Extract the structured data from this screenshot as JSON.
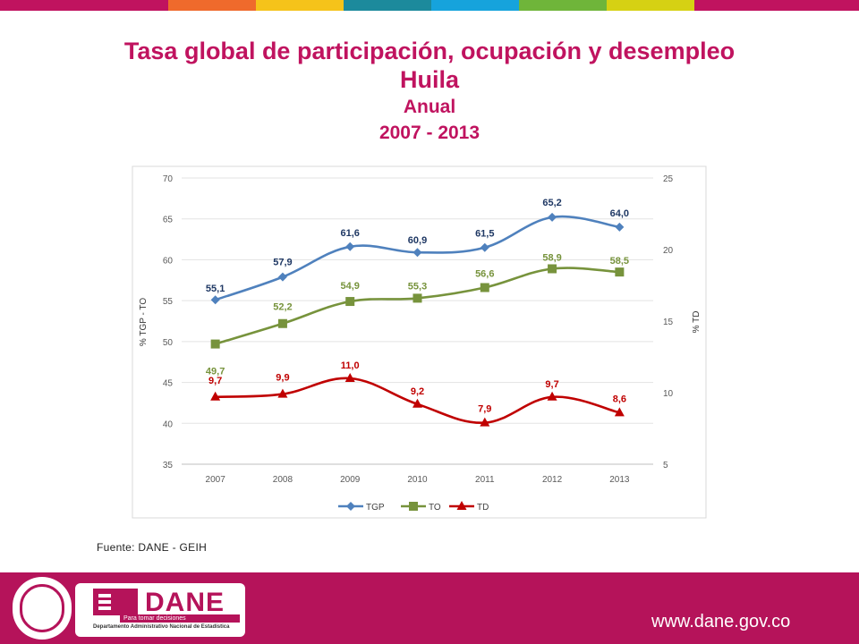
{
  "header": {
    "stripe_colors": [
      "#c0135f",
      "#ef6a2c",
      "#f5c31a",
      "#1c8a9c",
      "#16a3dc",
      "#6fb53a",
      "#d6d113",
      "#c0135f"
    ]
  },
  "title": {
    "line1": "Tasa global de participación, ocupación y desempleo",
    "line2": "Huila",
    "line3": "Anual",
    "line4": "2007 - 2013"
  },
  "chart_data": {
    "type": "line",
    "categories": [
      "2007",
      "2008",
      "2009",
      "2010",
      "2011",
      "2012",
      "2013"
    ],
    "ylabel_left": "%  TGP - TO",
    "ylabel_right": "%  TD",
    "ylim_left": [
      35,
      70
    ],
    "ylim_right": [
      5,
      25
    ],
    "yticks_left": [
      "35",
      "40",
      "45",
      "50",
      "55",
      "60",
      "65",
      "70"
    ],
    "yticks_right": [
      "5",
      "10",
      "15",
      "20",
      "25"
    ],
    "grid": true,
    "legend_position": "bottom",
    "series": [
      {
        "name": "TGP",
        "axis": "left",
        "color": "#4f81bd",
        "marker": "diamond",
        "values": [
          55.1,
          57.9,
          61.6,
          60.9,
          61.5,
          65.2,
          64.0
        ],
        "labels": [
          "55,1",
          "57,9",
          "61,6",
          "60,9",
          "61,5",
          "65,2",
          "64,0"
        ],
        "label_color": "#1f3864"
      },
      {
        "name": "TO",
        "axis": "left",
        "color": "#77933c",
        "marker": "square",
        "values": [
          49.7,
          52.2,
          54.9,
          55.3,
          56.6,
          58.9,
          58.5
        ],
        "labels": [
          "49,7",
          "52,2",
          "54,9",
          "55,3",
          "56,6",
          "58,9",
          "58,5"
        ],
        "label_color": "#77933c"
      },
      {
        "name": "TD",
        "axis": "right",
        "color": "#c00000",
        "marker": "triangle",
        "values": [
          9.7,
          9.9,
          11.0,
          9.2,
          7.9,
          9.7,
          8.6
        ],
        "labels": [
          "9,7",
          "9,9",
          "11,0",
          "9,2",
          "7,9",
          "9,7",
          "8,6"
        ],
        "label_color": "#c00000"
      }
    ]
  },
  "source": "Fuente: DANE - GEIH",
  "footer": {
    "logo_word": "DANE",
    "logo_tagline": "Para tomar decisiones",
    "logo_subtitle": "Departamento Administrativo Nacional de Estadística",
    "website": "www.dane.gov.co",
    "background_color": "#b5135a"
  }
}
